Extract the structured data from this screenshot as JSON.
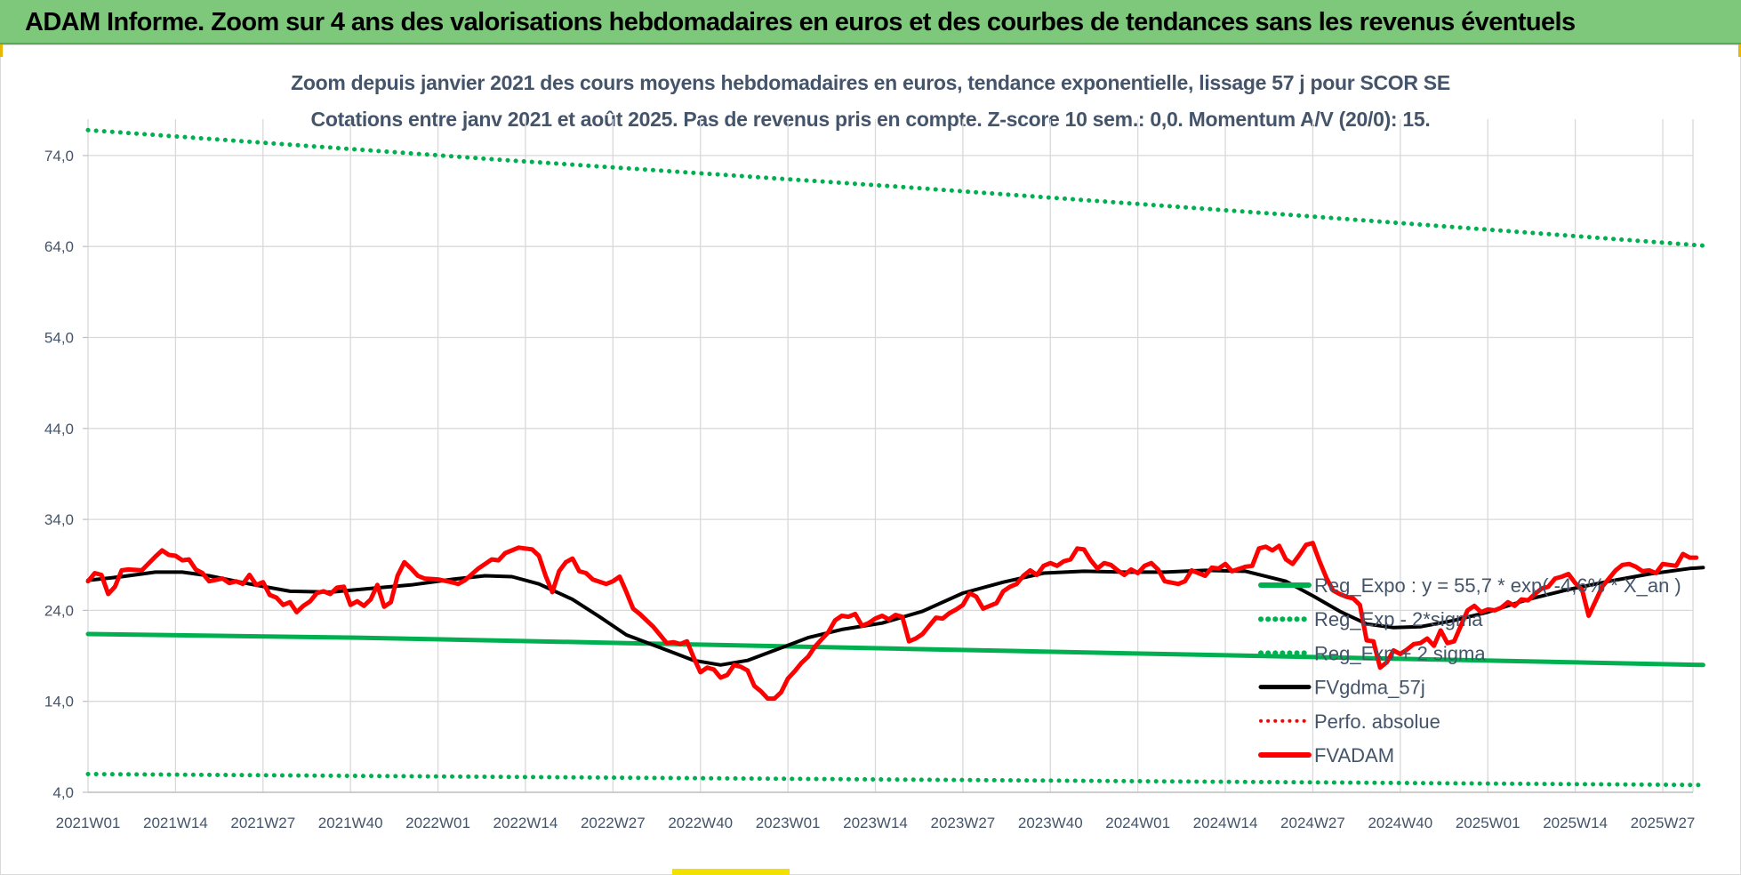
{
  "header": {
    "title": "ADAM Informe. Zoom sur 4 ans des valorisations hebdomadaires en euros et des courbes de tendances sans les revenus éventuels"
  },
  "colors": {
    "banner": "#7dc87a",
    "grid": "#d9d9d9",
    "text": "#44546a",
    "reg_expo": "#00b050",
    "bands": "#00b050",
    "smooth": "#000000",
    "fvadam": "#ff0000",
    "perfo": "#ff0000"
  },
  "chart_data": {
    "type": "line",
    "title": "Zoom depuis janvier 2021 des cours moyens hebdomadaires en euros, tendance exponentielle, lissage 57 j pour SCOR SE",
    "subtitle": "Cotations entre janv 2021 et août 2025.  Pas de revenus pris en compte. Z-score 10 sem.: 0,0. Momentum A/V (20/0): 15.",
    "xlabel": "",
    "ylabel": "",
    "ylim": [
      4,
      78
    ],
    "yticks": [
      "4,0",
      "14,0",
      "24,0",
      "34,0",
      "44,0",
      "54,0",
      "64,0",
      "74,0"
    ],
    "ytick_values": [
      4,
      14,
      24,
      34,
      44,
      54,
      64,
      74
    ],
    "x_ticks": [
      "2021W01",
      "2021W14",
      "2021W27",
      "2021W40",
      "2022W01",
      "2022W14",
      "2022W27",
      "2022W40",
      "2023W01",
      "2023W14",
      "2023W27",
      "2023W40",
      "2024W01",
      "2024W14",
      "2024W27",
      "2024W40",
      "2025W01",
      "2025W14",
      "2025W27"
    ],
    "x_tick_index": [
      0,
      13,
      26,
      39,
      52,
      65,
      78,
      91,
      104,
      117,
      130,
      143,
      156,
      169,
      182,
      195,
      208,
      221,
      234
    ],
    "n_weeks": 241,
    "grid": true,
    "legend_position": "right",
    "series": [
      {
        "name": "Reg_Expo : y = 55,7 * exp( -4,6% * X_an )",
        "style": "solid",
        "color": "#00b050",
        "width": 5,
        "points": [
          [
            0,
            21.4
          ],
          [
            40,
            21.0
          ],
          [
            80,
            20.4
          ],
          [
            120,
            19.8
          ],
          [
            160,
            19.2
          ],
          [
            200,
            18.6
          ],
          [
            240,
            18.0
          ]
        ]
      },
      {
        "name": "Reg_Exp - 2*sigma",
        "style": "dotted",
        "color": "#00b050",
        "width": 5,
        "points": [
          [
            0,
            6.0
          ],
          [
            80,
            5.6
          ],
          [
            160,
            5.2
          ],
          [
            240,
            4.8
          ]
        ]
      },
      {
        "name": "Reg_Exp + 2 sigma",
        "style": "dotted",
        "color": "#00b050",
        "width": 5,
        "points": [
          [
            0,
            76.8
          ],
          [
            60,
            73.6
          ],
          [
            120,
            70.6
          ],
          [
            180,
            67.4
          ],
          [
            240,
            64.1
          ]
        ]
      },
      {
        "name": "FVgdma_57j",
        "style": "solid",
        "color": "#000000",
        "width": 4,
        "points": [
          [
            0,
            27.3
          ],
          [
            5,
            27.7
          ],
          [
            10,
            28.2
          ],
          [
            14,
            28.2
          ],
          [
            18,
            27.8
          ],
          [
            24,
            26.9
          ],
          [
            30,
            26.1
          ],
          [
            36,
            26.0
          ],
          [
            42,
            26.4
          ],
          [
            48,
            26.8
          ],
          [
            54,
            27.4
          ],
          [
            59,
            27.8
          ],
          [
            63,
            27.7
          ],
          [
            67,
            26.9
          ],
          [
            72,
            25.2
          ],
          [
            76,
            23.3
          ],
          [
            80,
            21.3
          ],
          [
            85,
            19.9
          ],
          [
            90,
            18.5
          ],
          [
            94,
            18.0
          ],
          [
            98,
            18.5
          ],
          [
            102,
            19.6
          ],
          [
            107,
            21.0
          ],
          [
            112,
            21.9
          ],
          [
            118,
            22.6
          ],
          [
            124,
            23.9
          ],
          [
            130,
            25.9
          ],
          [
            136,
            27.1
          ],
          [
            142,
            28.1
          ],
          [
            148,
            28.3
          ],
          [
            154,
            28.2
          ],
          [
            160,
            28.2
          ],
          [
            166,
            28.4
          ],
          [
            172,
            28.3
          ],
          [
            178,
            27.2
          ],
          [
            182,
            25.6
          ],
          [
            186,
            23.9
          ],
          [
            190,
            22.5
          ],
          [
            194,
            22.1
          ],
          [
            198,
            22.2
          ],
          [
            203,
            22.9
          ],
          [
            208,
            23.8
          ],
          [
            214,
            25.2
          ],
          [
            220,
            26.3
          ],
          [
            226,
            27.2
          ],
          [
            232,
            28.0
          ],
          [
            238,
            28.6
          ],
          [
            240,
            28.7
          ]
        ]
      },
      {
        "name": "Perfo. absolue",
        "style": "dotted",
        "color": "#ff0000",
        "width": 3,
        "points": []
      },
      {
        "name": "FVADAM",
        "style": "solid",
        "color": "#ff0000",
        "width": 5,
        "points": [
          [
            0,
            27.2
          ],
          [
            1,
            28.1
          ],
          [
            2,
            27.9
          ],
          [
            3,
            25.8
          ],
          [
            4,
            26.6
          ],
          [
            5,
            28.4
          ],
          [
            6,
            28.5
          ],
          [
            8,
            28.4
          ],
          [
            10,
            29.9
          ],
          [
            11,
            30.6
          ],
          [
            12,
            30.1
          ],
          [
            13,
            30.0
          ],
          [
            14,
            29.5
          ],
          [
            15,
            29.6
          ],
          [
            16,
            28.5
          ],
          [
            17,
            28.1
          ],
          [
            18,
            27.2
          ],
          [
            20,
            27.5
          ],
          [
            21,
            27.0
          ],
          [
            22,
            27.2
          ],
          [
            23,
            26.9
          ],
          [
            24,
            27.9
          ],
          [
            25,
            26.8
          ],
          [
            26,
            27.1
          ],
          [
            27,
            25.7
          ],
          [
            28,
            25.4
          ],
          [
            29,
            24.6
          ],
          [
            30,
            24.9
          ],
          [
            31,
            23.8
          ],
          [
            32,
            24.5
          ],
          [
            33,
            25.0
          ],
          [
            34,
            25.9
          ],
          [
            35,
            26.1
          ],
          [
            36,
            25.8
          ],
          [
            37,
            26.5
          ],
          [
            38,
            26.6
          ],
          [
            39,
            24.6
          ],
          [
            40,
            25.0
          ],
          [
            41,
            24.5
          ],
          [
            42,
            25.2
          ],
          [
            43,
            26.8
          ],
          [
            44,
            24.4
          ],
          [
            45,
            24.9
          ],
          [
            46,
            27.8
          ],
          [
            47,
            29.3
          ],
          [
            48,
            28.6
          ],
          [
            49,
            27.8
          ],
          [
            50,
            27.5
          ],
          [
            52,
            27.4
          ],
          [
            54,
            27.1
          ],
          [
            55,
            26.9
          ],
          [
            56,
            27.3
          ],
          [
            58,
            28.6
          ],
          [
            60,
            29.6
          ],
          [
            61,
            29.5
          ],
          [
            62,
            30.3
          ],
          [
            64,
            30.9
          ],
          [
            66,
            30.7
          ],
          [
            67,
            30.0
          ],
          [
            68,
            27.8
          ],
          [
            69,
            26.0
          ],
          [
            70,
            28.3
          ],
          [
            71,
            29.3
          ],
          [
            72,
            29.7
          ],
          [
            73,
            28.3
          ],
          [
            74,
            28.1
          ],
          [
            75,
            27.4
          ],
          [
            77,
            26.9
          ],
          [
            78,
            27.2
          ],
          [
            79,
            27.7
          ],
          [
            80,
            26.0
          ],
          [
            81,
            24.2
          ],
          [
            82,
            23.6
          ],
          [
            84,
            22.2
          ],
          [
            85,
            21.3
          ],
          [
            86,
            20.4
          ],
          [
            87,
            20.5
          ],
          [
            88,
            20.3
          ],
          [
            89,
            20.6
          ],
          [
            90,
            18.8
          ],
          [
            91,
            17.2
          ],
          [
            92,
            17.7
          ],
          [
            93,
            17.5
          ],
          [
            94,
            16.6
          ],
          [
            95,
            16.9
          ],
          [
            96,
            18.0
          ],
          [
            97,
            17.8
          ],
          [
            98,
            17.4
          ],
          [
            99,
            15.7
          ],
          [
            100,
            15.1
          ],
          [
            101,
            14.3
          ],
          [
            102,
            14.3
          ],
          [
            103,
            15.0
          ],
          [
            104,
            16.5
          ],
          [
            105,
            17.3
          ],
          [
            106,
            18.2
          ],
          [
            107,
            18.9
          ],
          [
            108,
            20.0
          ],
          [
            109,
            20.8
          ],
          [
            110,
            21.6
          ],
          [
            111,
            22.9
          ],
          [
            112,
            23.4
          ],
          [
            113,
            23.3
          ],
          [
            114,
            23.6
          ],
          [
            115,
            22.3
          ],
          [
            116,
            22.6
          ],
          [
            117,
            23.1
          ],
          [
            118,
            23.4
          ],
          [
            119,
            23.0
          ],
          [
            120,
            23.5
          ],
          [
            121,
            23.3
          ],
          [
            122,
            20.6
          ],
          [
            123,
            20.9
          ],
          [
            124,
            21.4
          ],
          [
            125,
            22.3
          ],
          [
            126,
            23.2
          ],
          [
            127,
            23.1
          ],
          [
            128,
            23.7
          ],
          [
            129,
            24.1
          ],
          [
            130,
            24.6
          ],
          [
            131,
            25.9
          ],
          [
            132,
            25.5
          ],
          [
            133,
            24.2
          ],
          [
            134,
            24.5
          ],
          [
            135,
            24.8
          ],
          [
            136,
            26.1
          ],
          [
            137,
            26.6
          ],
          [
            138,
            26.9
          ],
          [
            139,
            27.8
          ],
          [
            140,
            28.4
          ],
          [
            141,
            27.9
          ],
          [
            142,
            28.9
          ],
          [
            143,
            29.2
          ],
          [
            144,
            28.9
          ],
          [
            145,
            29.4
          ],
          [
            146,
            29.6
          ],
          [
            147,
            30.8
          ],
          [
            148,
            30.7
          ],
          [
            149,
            29.5
          ],
          [
            150,
            28.6
          ],
          [
            151,
            29.2
          ],
          [
            152,
            29.0
          ],
          [
            153,
            28.4
          ],
          [
            154,
            27.9
          ],
          [
            155,
            28.5
          ],
          [
            156,
            28.1
          ],
          [
            157,
            28.9
          ],
          [
            158,
            29.2
          ],
          [
            159,
            28.5
          ],
          [
            160,
            27.2
          ],
          [
            162,
            26.9
          ],
          [
            163,
            27.2
          ],
          [
            164,
            28.4
          ],
          [
            166,
            27.8
          ],
          [
            167,
            28.7
          ],
          [
            168,
            28.6
          ],
          [
            169,
            29.1
          ],
          [
            170,
            28.3
          ],
          [
            172,
            28.8
          ],
          [
            173,
            28.9
          ],
          [
            174,
            30.8
          ],
          [
            175,
            31.0
          ],
          [
            176,
            30.6
          ],
          [
            177,
            31.1
          ],
          [
            178,
            29.6
          ],
          [
            179,
            29.1
          ],
          [
            180,
            30.1
          ],
          [
            181,
            31.2
          ],
          [
            182,
            31.4
          ],
          [
            183,
            29.4
          ],
          [
            184,
            27.6
          ],
          [
            185,
            26.2
          ],
          [
            186,
            25.8
          ],
          [
            187,
            25.5
          ],
          [
            188,
            25.3
          ],
          [
            189,
            24.6
          ],
          [
            190,
            20.7
          ],
          [
            191,
            20.6
          ],
          [
            192,
            17.7
          ],
          [
            193,
            18.3
          ],
          [
            194,
            19.6
          ],
          [
            195,
            19.2
          ],
          [
            196,
            19.7
          ],
          [
            197,
            20.3
          ],
          [
            198,
            20.4
          ],
          [
            199,
            20.9
          ],
          [
            200,
            20.1
          ],
          [
            201,
            21.8
          ],
          [
            202,
            20.4
          ],
          [
            203,
            20.6
          ],
          [
            204,
            22.3
          ],
          [
            205,
            24.0
          ],
          [
            206,
            24.5
          ],
          [
            207,
            23.8
          ],
          [
            208,
            24.1
          ],
          [
            209,
            24.0
          ],
          [
            210,
            24.3
          ],
          [
            211,
            24.9
          ],
          [
            212,
            24.5
          ],
          [
            213,
            25.2
          ],
          [
            214,
            25.1
          ],
          [
            215,
            25.8
          ],
          [
            216,
            26.4
          ],
          [
            217,
            26.6
          ],
          [
            218,
            27.5
          ],
          [
            219,
            27.7
          ],
          [
            220,
            28.0
          ],
          [
            221,
            27.0
          ],
          [
            222,
            26.3
          ],
          [
            223,
            23.4
          ],
          [
            224,
            25.0
          ],
          [
            225,
            26.6
          ],
          [
            226,
            27.5
          ],
          [
            227,
            28.4
          ],
          [
            228,
            29.0
          ],
          [
            229,
            29.1
          ],
          [
            230,
            28.8
          ],
          [
            231,
            28.3
          ],
          [
            232,
            28.4
          ],
          [
            233,
            28.1
          ],
          [
            234,
            29.1
          ],
          [
            235,
            29.0
          ],
          [
            236,
            28.9
          ],
          [
            237,
            30.2
          ],
          [
            238,
            29.8
          ],
          [
            239,
            29.8
          ]
        ]
      }
    ]
  }
}
